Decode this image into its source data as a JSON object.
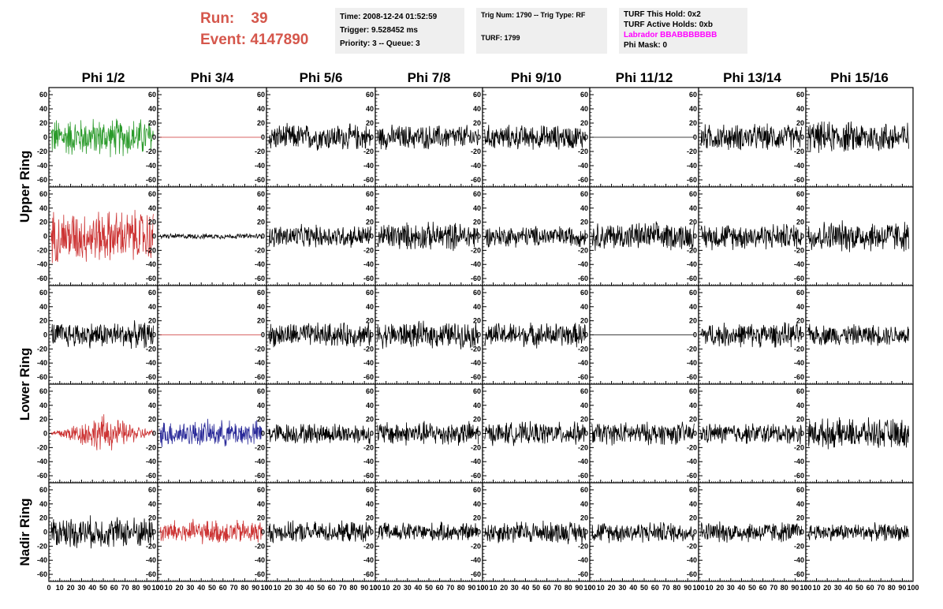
{
  "header": {
    "run_label": "Run:",
    "run_value": "39",
    "event_label": "Event:",
    "event_value": "4147890",
    "box1": {
      "time": "Time: 2008-12-24 01:52:59",
      "trigger": "Trigger: 9.528452 ms",
      "priority": "Priority: 3 -- Queue: 3"
    },
    "box2": {
      "trig_num": "Trig Num: 1790 -- Trig Type: RF",
      "turf": "TURF: 1799"
    },
    "box3": {
      "this_hold": "TURF This Hold: 0x2",
      "active_holds": "TURF Active Holds: 0xb",
      "labrador": "Labrador BBABBBBBBB",
      "phi_mask": "Phi Mask: 0"
    },
    "labrador_color": "#ff00ff"
  },
  "chart_data": {
    "type": "line",
    "title": "",
    "columns": [
      "Phi 1/2",
      "Phi 3/4",
      "Phi 5/6",
      "Phi 7/8",
      "Phi 9/10",
      "Phi 11/12",
      "Phi 13/14",
      "Phi 15/16"
    ],
    "row_groups": [
      {
        "label": "Upper Ring",
        "rows": [
          0,
          1
        ]
      },
      {
        "label": "Lower Ring",
        "rows": [
          2,
          3
        ]
      },
      {
        "label": "Nadir Ring",
        "rows": [
          4
        ]
      }
    ],
    "xlim": [
      0,
      100
    ],
    "ylim": [
      -70,
      70
    ],
    "x_ticks": [
      0,
      10,
      20,
      30,
      40,
      50,
      60,
      70,
      80,
      90,
      100
    ],
    "x_tick_labels": [
      "0",
      "10",
      "20",
      "30",
      "40",
      "50",
      "60",
      "70",
      "80",
      "90",
      "100"
    ],
    "y_ticks": [
      -60,
      -40,
      -20,
      0,
      20,
      40,
      60
    ],
    "y_tick_labels": [
      "-60",
      "-40",
      "-20",
      "0",
      "20",
      "40",
      "60"
    ],
    "colors": {
      "normal": "#000000",
      "green": "#2a9a2a",
      "red": "#cc3333",
      "blue": "#2a2a99"
    },
    "panels": [
      [
        {
          "color": "green",
          "amp": 22
        },
        {
          "color": "red",
          "amp": 0,
          "flat": true
        },
        {
          "color": "normal",
          "amp": 15
        },
        {
          "color": "normal",
          "amp": 14
        },
        {
          "color": "normal",
          "amp": 14
        },
        {
          "color": "normal",
          "amp": 0,
          "flat": true
        },
        {
          "color": "normal",
          "amp": 15
        },
        {
          "color": "normal",
          "amp": 18
        }
      ],
      [
        {
          "color": "red",
          "amp": 30
        },
        {
          "color": "normal",
          "amp": 3
        },
        {
          "color": "normal",
          "amp": 13
        },
        {
          "color": "normal",
          "amp": 16
        },
        {
          "color": "normal",
          "amp": 12
        },
        {
          "color": "normal",
          "amp": 16
        },
        {
          "color": "normal",
          "amp": 15
        },
        {
          "color": "normal",
          "amp": 18
        }
      ],
      [
        {
          "color": "normal",
          "amp": 15
        },
        {
          "color": "red",
          "amp": 0,
          "flat": true
        },
        {
          "color": "normal",
          "amp": 14
        },
        {
          "color": "normal",
          "amp": 15
        },
        {
          "color": "normal",
          "amp": 14
        },
        {
          "color": "normal",
          "amp": 0,
          "flat": true
        },
        {
          "color": "normal",
          "amp": 14
        },
        {
          "color": "normal",
          "amp": 12
        }
      ],
      [
        {
          "color": "red",
          "amp": 22
        },
        {
          "color": "blue",
          "amp": 15
        },
        {
          "color": "normal",
          "amp": 12
        },
        {
          "color": "normal",
          "amp": 14
        },
        {
          "color": "normal",
          "amp": 13
        },
        {
          "color": "normal",
          "amp": 13
        },
        {
          "color": "normal",
          "amp": 12
        },
        {
          "color": "normal",
          "amp": 17
        }
      ],
      [
        {
          "color": "normal",
          "amp": 18
        },
        {
          "color": "red",
          "amp": 14
        },
        {
          "color": "normal",
          "amp": 12
        },
        {
          "color": "normal",
          "amp": 11
        },
        {
          "color": "normal",
          "amp": 13
        },
        {
          "color": "normal",
          "amp": 12
        },
        {
          "color": "normal",
          "amp": 12
        },
        {
          "color": "normal",
          "amp": 10
        }
      ]
    ]
  }
}
